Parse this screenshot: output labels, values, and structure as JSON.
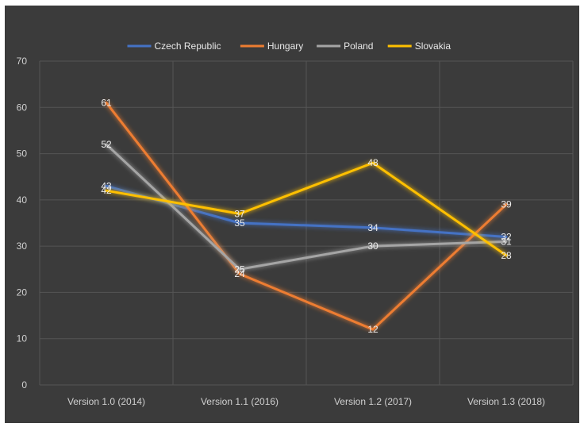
{
  "chart_data": {
    "type": "line",
    "categories": [
      "Version 1.0 (2014)",
      "Version 1.1 (2016)",
      "Version 1.2 (2017)",
      "Version 1.3 (2018)"
    ],
    "series": [
      {
        "name": "Czech Republic",
        "values": [
          43,
          35,
          34,
          32
        ],
        "color": "#4472c4"
      },
      {
        "name": "Hungary",
        "values": [
          61,
          24,
          12,
          39
        ],
        "color": "#ed7d31"
      },
      {
        "name": "Poland",
        "values": [
          52,
          25,
          30,
          31
        ],
        "color": "#a5a5a5"
      },
      {
        "name": "Slovakia",
        "values": [
          42,
          37,
          48,
          28
        ],
        "color": "#ffc000"
      }
    ],
    "ylim": [
      0,
      70
    ],
    "yticks": [
      0,
      10,
      20,
      30,
      40,
      50,
      60,
      70
    ],
    "ytick_labels": [
      "0",
      "10",
      "20",
      "30",
      "40",
      "50",
      "60",
      "70"
    ],
    "grid": true,
    "legend_position": "top",
    "data_labels": true,
    "colors": {
      "background": "#3b3b3b",
      "gridline": "#555555",
      "label_text": "#d0d0d0"
    }
  }
}
